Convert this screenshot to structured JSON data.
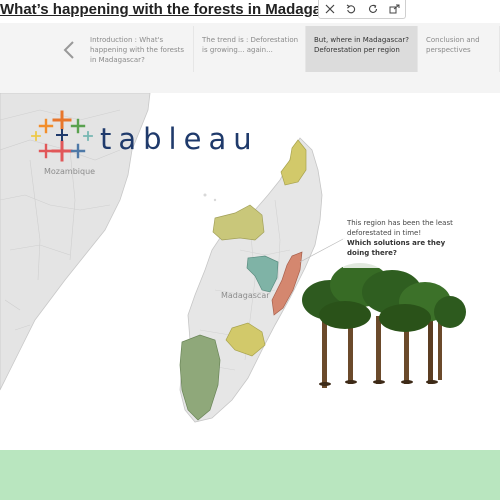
{
  "page": {
    "title": "What’s happening with the forests in Madagascar?"
  },
  "toolbar": {
    "icons": [
      "close-icon",
      "undo-icon",
      "refresh-icon",
      "share-icon"
    ]
  },
  "story": {
    "points": [
      {
        "label": "Introduction : What's happening with the forests in Madagascar?",
        "active": false
      },
      {
        "label": "The trend is : Deforestation is growing... again...",
        "active": false
      },
      {
        "label": "But, where in Madagascar? Deforestation per region",
        "active": true
      },
      {
        "label": "Conclusion and perspectives",
        "active": false
      }
    ]
  },
  "map": {
    "labels": {
      "mozambique": "Mozambique",
      "madagascar": "Madagascar"
    },
    "callout": {
      "text": "This region has been the least deforestated in time!",
      "question": "Which solutions are they doing there?"
    }
  },
  "logo": {
    "wordmark": "tableau"
  },
  "colors": {
    "olive_yellow": "#d2c96a",
    "khaki": "#c9c77a",
    "teal": "#7fb3a6",
    "salmon": "#d4876f",
    "green": "#8fa87a",
    "footer": "#b9e6bf",
    "active_point": "#dcdcdc"
  }
}
